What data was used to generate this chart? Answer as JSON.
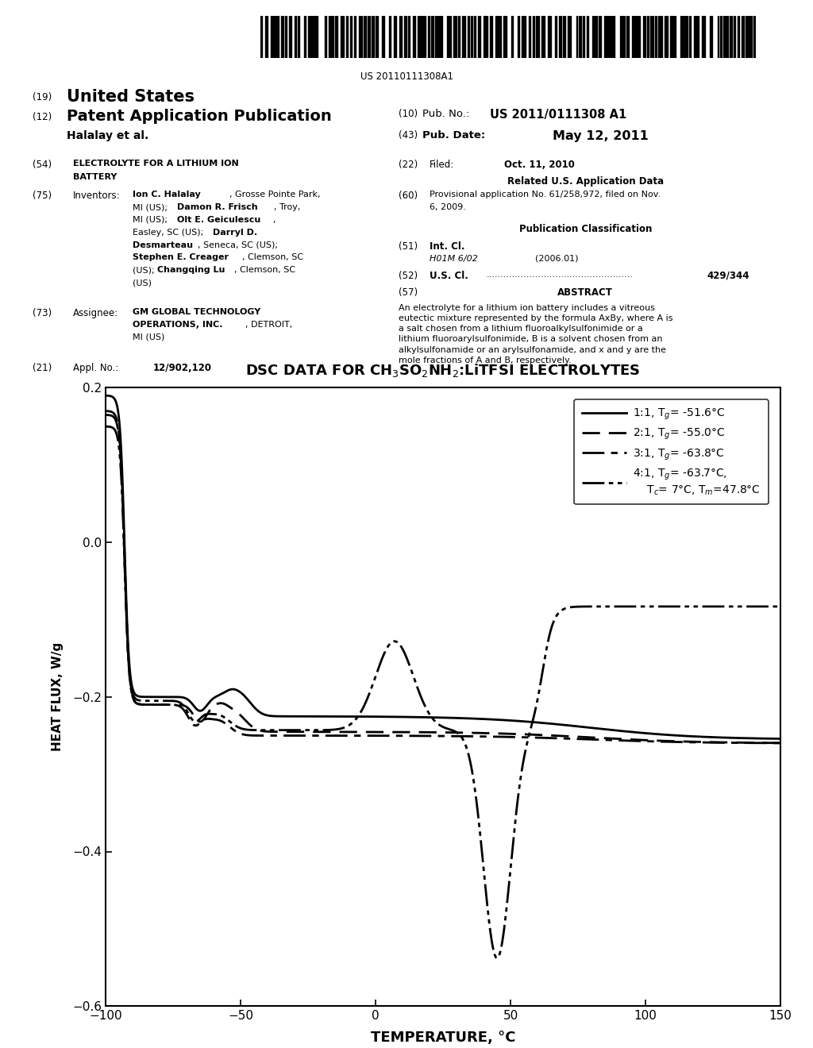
{
  "patent_number": "US 20110111308A1",
  "pub_number": "US 2011/0111308 A1",
  "pub_date": "May 12, 2011",
  "filed_date": "Oct. 11, 2010",
  "app_number": "12/902,120",
  "us_cl": "429/344",
  "title54_line1": "ELECTROLYTE FOR A LITHIUM ION",
  "title54_line2": "BATTERY",
  "prov_app_line1": "Provisional application No. 61/258,972, filed on Nov.",
  "prov_app_line2": "6, 2009.",
  "abstract_lines": [
    "An electrolyte for a lithium ion battery includes a vitreous",
    "eutectic mixture represented by the formula A",
    "xBy, where A is",
    "a salt chosen from a lithium fluoroalkylsulfonimide or a",
    "lithium fluoroarylsulfonimide, B is a solvent chosen from an",
    "alkylsulfonamide or an arylsulfonamide, and x and y are the",
    "mole fractions of A and B, respectively."
  ],
  "chart_title": "DSC DATA FOR CH$_3$SO$_2$NH$_2$:LiTFSI ELECTROLYTES",
  "xlabel": "TEMPERATURE, °C",
  "ylabel": "HEAT FLUX, W/g",
  "xlim": [
    -100,
    150
  ],
  "ylim": [
    -0.6,
    0.2
  ],
  "xticks": [
    -100,
    -50,
    0,
    50,
    100,
    150
  ],
  "yticks": [
    -0.6,
    -0.4,
    -0.2,
    0.0,
    0.2
  ],
  "legend_entries": [
    "1:1, T$_g$= -51.6°C",
    "2:1, T$_g$= -55.0°C",
    "3:1, T$_g$= -63.8°C",
    "4:1, T$_g$= -63.7°C,\n    T$_c$= 7°C, T$_m$=47.8°C"
  ]
}
